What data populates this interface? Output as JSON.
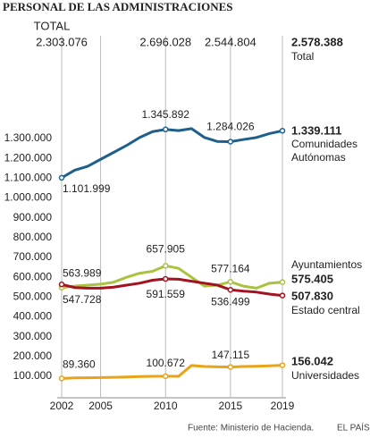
{
  "chart_data": {
    "type": "line",
    "title": "PERSONAL DE LAS ADMINISTRACIONES",
    "total_title": "TOTAL",
    "total_name": "Total",
    "totals": [
      {
        "x": 2002,
        "label": "2.303.076"
      },
      {
        "x": 2010,
        "label": "2.696.028"
      },
      {
        "x": 2015,
        "label": "2.544.804"
      },
      {
        "x": 2019,
        "label": "2.578.388"
      }
    ],
    "x": [
      2002,
      2003,
      2004,
      2005,
      2006,
      2007,
      2008,
      2009,
      2010,
      2011,
      2012,
      2013,
      2014,
      2015,
      2016,
      2017,
      2018,
      2019
    ],
    "series": [
      {
        "name": "Comunidades Autónomas",
        "color": "#1f5f8b",
        "values": [
          1101999,
          1140000,
          1160000,
          1195000,
          1230000,
          1265000,
          1305000,
          1335000,
          1345892,
          1340000,
          1350000,
          1305000,
          1285000,
          1284026,
          1295000,
          1305000,
          1325000,
          1339111
        ],
        "value_labels": [
          "1.101.999",
          null,
          null,
          null,
          null,
          null,
          null,
          null,
          "1.345.892",
          null,
          null,
          null,
          null,
          "1.284.026",
          null,
          null,
          null,
          "1.339.111"
        ]
      },
      {
        "name": "Ayuntamientos",
        "color": "#a9c23f",
        "values": [
          547728,
          555000,
          560000,
          565000,
          575000,
          600000,
          620000,
          630000,
          657905,
          645000,
          600000,
          555000,
          560000,
          577164,
          555000,
          545000,
          570000,
          575405
        ],
        "value_labels": [
          "547.728",
          null,
          null,
          null,
          null,
          null,
          null,
          null,
          "657.905",
          null,
          null,
          null,
          null,
          "577.164",
          null,
          null,
          null,
          "575.405"
        ]
      },
      {
        "name": "Estado central",
        "color": "#a3121e",
        "values": [
          563989,
          548000,
          545000,
          545000,
          550000,
          560000,
          570000,
          585000,
          591559,
          590000,
          580000,
          570000,
          560000,
          536499,
          530000,
          525000,
          515000,
          507830
        ],
        "value_labels": [
          "563.989",
          null,
          null,
          null,
          null,
          null,
          null,
          null,
          "591.559",
          null,
          null,
          null,
          null,
          "536.499",
          null,
          null,
          null,
          "507.830"
        ]
      },
      {
        "name": "Universidades",
        "color": "#e8a317",
        "values": [
          89360,
          92000,
          93000,
          94000,
          95000,
          97000,
          99000,
          100000,
          100672,
          100000,
          155000,
          150000,
          148000,
          147115,
          150000,
          151000,
          153000,
          156042
        ],
        "value_labels": [
          "89.360",
          null,
          null,
          null,
          null,
          null,
          null,
          null,
          "100.672",
          null,
          null,
          null,
          null,
          "147.115",
          null,
          null,
          null,
          "156.042"
        ]
      }
    ],
    "xlim": [
      2002,
      2019
    ],
    "xticks": [
      2002,
      2005,
      2010,
      2015,
      2019
    ],
    "ylim": [
      0,
      1400000
    ],
    "yticks": [
      {
        "value": 100000,
        "label": "100.000"
      },
      {
        "value": 200000,
        "label": "200.000"
      },
      {
        "value": 300000,
        "label": "300.000"
      },
      {
        "value": 400000,
        "label": "400.000"
      },
      {
        "value": 500000,
        "label": "500.000"
      },
      {
        "value": 600000,
        "label": "600.000"
      },
      {
        "value": 700000,
        "label": "700.000"
      },
      {
        "value": 800000,
        "label": "800.000"
      },
      {
        "value": 900000,
        "label": "900.000"
      },
      {
        "value": 1000000,
        "label": "1.000.000"
      },
      {
        "value": 1100000,
        "label": "1.100.000"
      },
      {
        "value": 1200000,
        "label": "1.200.000"
      },
      {
        "value": 1300000,
        "label": "1.300.000"
      }
    ],
    "source": "Fuente: Ministerio de Hacienda.",
    "credit": "EL PAÍS"
  }
}
